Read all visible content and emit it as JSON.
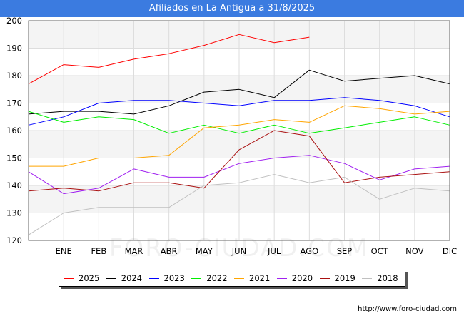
{
  "header": {
    "title": "Afiliados en La Antigua a 31/8/2025"
  },
  "footer": {
    "url": "http://www.foro-ciudad.com"
  },
  "watermark": "FORO-CIUDAD.COM",
  "chart_data": {
    "type": "line",
    "title": "Afiliados en La Antigua a 31/8/2025",
    "xlabel": "",
    "ylabel": "",
    "categories": [
      "",
      "ENE",
      "FEB",
      "MAR",
      "ABR",
      "MAY",
      "JUN",
      "JUL",
      "AGO",
      "SEP",
      "OCT",
      "NOV",
      "DIC"
    ],
    "ylim": [
      120,
      200
    ],
    "yticks": [
      120,
      130,
      140,
      150,
      160,
      170,
      180,
      190,
      200
    ],
    "grid": true,
    "legend_position": "bottom",
    "series": [
      {
        "name": "2025",
        "color": "#ff0000",
        "values": [
          177,
          184,
          183,
          186,
          188,
          191,
          195,
          192,
          194,
          null,
          null,
          null,
          null
        ]
      },
      {
        "name": "2024",
        "color": "#000000",
        "values": [
          166,
          167,
          167,
          166,
          169,
          174,
          175,
          172,
          182,
          178,
          179,
          180,
          177
        ]
      },
      {
        "name": "2023",
        "color": "#0000ff",
        "values": [
          162,
          165,
          170,
          171,
          171,
          170,
          169,
          171,
          171,
          172,
          171,
          169,
          165
        ]
      },
      {
        "name": "2022",
        "color": "#00ee00",
        "values": [
          167,
          163,
          165,
          164,
          159,
          162,
          159,
          162,
          159,
          161,
          163,
          165,
          162
        ]
      },
      {
        "name": "2021",
        "color": "#ffa500",
        "values": [
          147,
          147,
          150,
          150,
          151,
          161,
          162,
          164,
          163,
          169,
          168,
          166,
          167
        ]
      },
      {
        "name": "2020",
        "color": "#a020f0",
        "values": [
          145,
          137,
          139,
          146,
          143,
          143,
          148,
          150,
          151,
          148,
          142,
          146,
          147
        ]
      },
      {
        "name": "2019",
        "color": "#aa1111",
        "values": [
          138,
          139,
          138,
          141,
          141,
          139,
          153,
          160,
          158,
          141,
          143,
          144,
          145
        ]
      },
      {
        "name": "2018",
        "color": "#c0c0c0",
        "values": [
          122,
          130,
          132,
          132,
          132,
          140,
          141,
          144,
          141,
          143,
          135,
          139,
          138
        ]
      }
    ]
  }
}
